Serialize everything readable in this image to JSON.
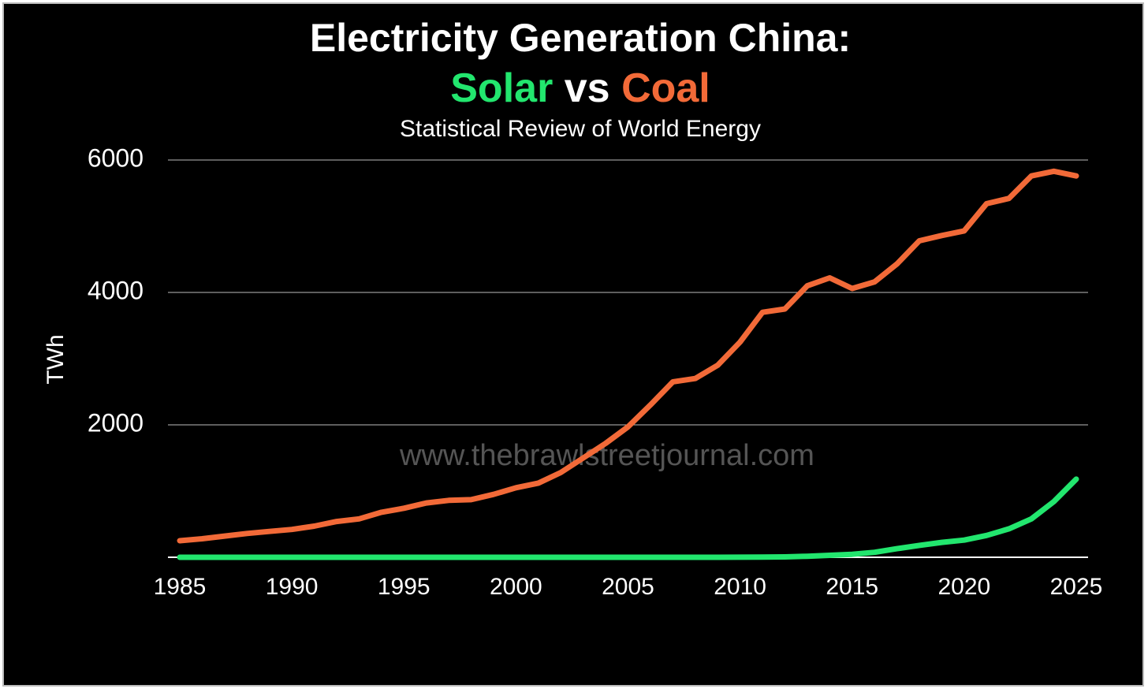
{
  "chart_data": {
    "type": "line",
    "title": "Electricity Generation China:",
    "title_connector": "vs",
    "subtitle": "Statistical Review of World Energy",
    "y_label": "TWh",
    "watermark": "www.thebrawlstreetjournal.com",
    "x": [
      1985,
      1986,
      1987,
      1988,
      1989,
      1990,
      1991,
      1992,
      1993,
      1994,
      1995,
      1996,
      1997,
      1998,
      1999,
      2000,
      2001,
      2002,
      2003,
      2004,
      2005,
      2006,
      2007,
      2008,
      2009,
      2010,
      2011,
      2012,
      2013,
      2014,
      2015,
      2016,
      2017,
      2018,
      2019,
      2020,
      2021,
      2022,
      2023,
      2024,
      2025
    ],
    "series": [
      {
        "name": "Solar",
        "color": "#22e66e",
        "values": [
          0,
          0,
          0,
          0,
          0,
          0,
          0,
          0,
          0,
          0,
          0,
          0,
          0,
          0,
          0,
          0,
          0,
          0,
          0,
          0,
          0,
          0,
          0,
          0,
          0,
          1,
          3,
          6,
          15,
          30,
          45,
          75,
          130,
          180,
          225,
          260,
          330,
          430,
          580,
          840,
          1180
        ]
      },
      {
        "name": "Coal",
        "color": "#f26a38",
        "values": [
          250,
          280,
          320,
          360,
          390,
          420,
          470,
          540,
          580,
          680,
          740,
          820,
          860,
          870,
          950,
          1050,
          1120,
          1280,
          1500,
          1720,
          1970,
          2300,
          2650,
          2700,
          2900,
          3250,
          3700,
          3750,
          4100,
          4220,
          4060,
          4160,
          4430,
          4780,
          4860,
          4930,
          5340,
          5420,
          5760,
          5830,
          5760
        ]
      }
    ],
    "xlim": [
      1985,
      2025
    ],
    "xticks": [
      1985,
      1990,
      1995,
      2000,
      2005,
      2010,
      2015,
      2020,
      2025
    ],
    "ylim": [
      0,
      6000
    ],
    "yticks": [
      2000,
      4000,
      6000
    ],
    "grid": true
  }
}
